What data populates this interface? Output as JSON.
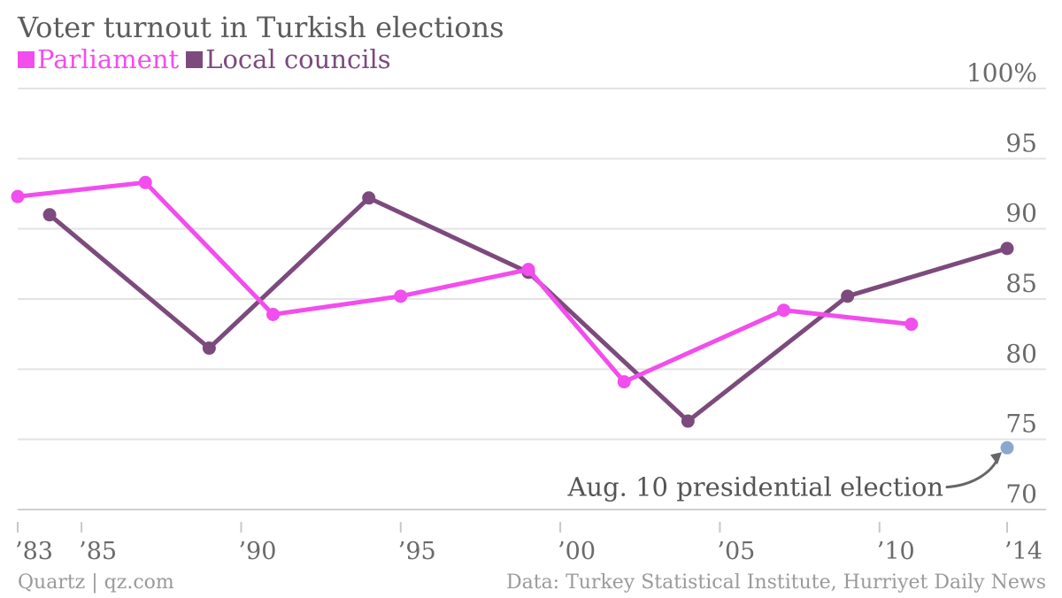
{
  "chart_data": {
    "type": "line",
    "title": "Voter turnout in Turkish elections",
    "xlabel": "",
    "ylabel": "",
    "ylim": [
      70,
      100
    ],
    "xlim": [
      1983,
      2014
    ],
    "y_ticks": [
      "70",
      "75",
      "80",
      "85",
      "90",
      "95",
      "100%"
    ],
    "y_tick_values": [
      70,
      75,
      80,
      85,
      90,
      95,
      100
    ],
    "x_ticks": [
      "’83",
      "’85",
      "’90",
      "’95",
      "’00",
      "’05",
      "’10",
      "’14"
    ],
    "x_tick_values": [
      1983,
      1985,
      1990,
      1995,
      2000,
      2005,
      2010,
      2014
    ],
    "grid": true,
    "legend": "top-left",
    "series": [
      {
        "name": "Parliament",
        "color": "#f24ded",
        "x": [
          1983,
          1987,
          1991,
          1995,
          1999,
          2002,
          2007,
          2011
        ],
        "y": [
          92.3,
          93.3,
          83.9,
          85.2,
          87.1,
          79.1,
          84.2,
          83.2
        ]
      },
      {
        "name": "Local councils",
        "color": "#7c4a7d",
        "x": [
          1984,
          1989,
          1994,
          1999,
          2004,
          2009,
          2014
        ],
        "y": [
          91.0,
          81.5,
          92.2,
          86.9,
          76.3,
          85.2,
          88.6
        ]
      }
    ],
    "points": [
      {
        "x": 2014,
        "y": 74.4,
        "color": "#8aa8cc"
      }
    ],
    "annotations": [
      {
        "text": "Aug. 10 presidential election",
        "target_x": 2014,
        "target_y": 74.4
      }
    ]
  },
  "source_left": "Quartz | qz.com",
  "source_right": "Data: Turkey Statistical Institute, Hurriyet Daily News"
}
